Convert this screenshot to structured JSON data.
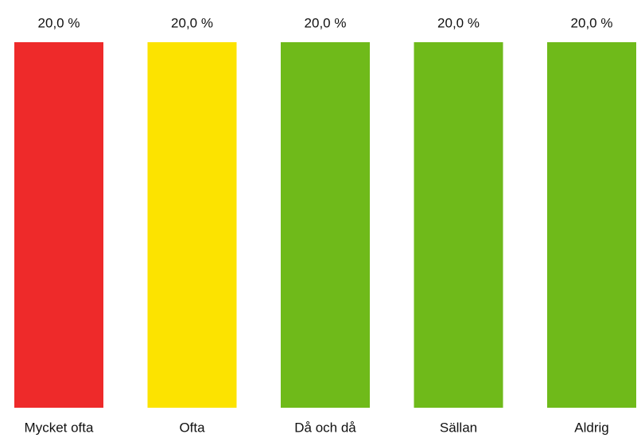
{
  "chart_data": {
    "type": "bar",
    "categories": [
      "Mycket ofta",
      "Ofta",
      "Då och då",
      "Sällan",
      "Aldrig"
    ],
    "values": [
      20,
      20,
      20,
      20,
      20
    ],
    "value_labels": [
      "20,0 %",
      "20,0 %",
      "20,0 %",
      "20,0 %",
      "20,0 %"
    ],
    "colors": [
      "#ee2a2a",
      "#fce300",
      "#6fba1a",
      "#6fba1a",
      "#6fba1a"
    ]
  }
}
